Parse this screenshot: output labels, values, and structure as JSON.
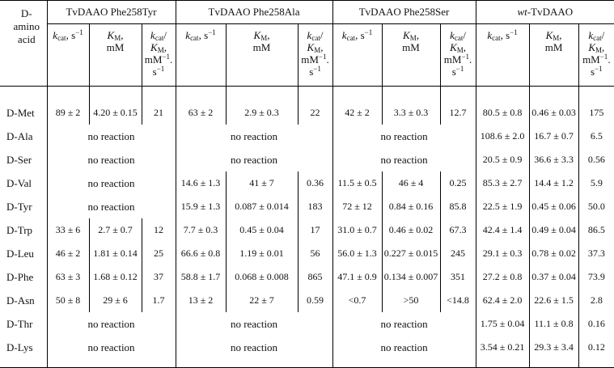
{
  "first_col_header": [
    "D-",
    "amino",
    "acid"
  ],
  "groups": [
    {
      "prefix": "",
      "name": "TvDAAO Phe258Tyr"
    },
    {
      "prefix": "",
      "name": "TvDAAO Phe258Ala"
    },
    {
      "prefix": "",
      "name": "TvDAAO Phe258Ser"
    },
    {
      "prefix": "wt",
      "name": "-TvDAAO"
    }
  ],
  "headers": {
    "kcat": {
      "sym": "k",
      "sub": "cat",
      "unit": ", s",
      "exp": "−1"
    },
    "km": {
      "sym": "K",
      "sub": "M",
      "unit": ",",
      "line2": "mM"
    },
    "eff": {
      "sym": "k",
      "sub": "cat",
      "slash": "/",
      "sym2": "K",
      "sub2": "M",
      "comma": ",",
      "unit": "mM",
      "exp": "−1",
      "dot": ".",
      "unit2": "s",
      "exp2": "−1"
    }
  },
  "rows": [
    {
      "aa": "D-Met",
      "groups": [
        [
          "89 ± 2",
          "4.20 ± 0.15",
          "21"
        ],
        [
          "63 ± 2",
          "2.9 ± 0.3",
          "22"
        ],
        [
          "42 ± 2",
          "3.3 ± 0.3",
          "12.7"
        ],
        [
          "80.5 ± 0.8",
          "0.46 ± 0.03",
          "175"
        ]
      ]
    },
    {
      "aa": "D-Ala",
      "groups": [
        "no reaction",
        "no reaction",
        "no reaction",
        [
          "108.6 ± 2.0",
          "16.7 ± 0.7",
          "6.5"
        ]
      ]
    },
    {
      "aa": "D-Ser",
      "groups": [
        "no reaction",
        "no reaction",
        "no reaction",
        [
          "20.5 ± 0.9",
          "36.6 ± 3.3",
          "0.56"
        ]
      ]
    },
    {
      "aa": "D-Val",
      "groups": [
        "no reaction",
        [
          "14.6 ± 1.3",
          "41 ± 7",
          "0.36"
        ],
        [
          "11.5 ± 0.5",
          "46 ± 4",
          "0.25"
        ],
        [
          "85.3 ± 2.7",
          "14.4 ± 1.2",
          "5.9"
        ]
      ]
    },
    {
      "aa": "D-Tyr",
      "groups": [
        "no reaction",
        [
          "15.9 ± 1.3",
          "0.087 ± 0.014",
          "183"
        ],
        [
          "72 ± 12",
          "0.84 ± 0.16",
          "85.8"
        ],
        [
          "22.5 ± 1.9",
          "0.45 ± 0.06",
          "50.0"
        ]
      ]
    },
    {
      "aa": "D-Trp",
      "groups": [
        [
          "33 ± 6",
          "2.7 ± 0.7",
          "12"
        ],
        [
          "7.7 ± 0.3",
          "0.45 ± 0.04",
          "17"
        ],
        [
          "31.0 ± 0.7",
          "0.46 ± 0.02",
          "67.3"
        ],
        [
          "42.4 ± 1.4",
          "0.49 ± 0.04",
          "86.5"
        ]
      ]
    },
    {
      "aa": "D-Leu",
      "groups": [
        [
          "46 ± 2",
          "1.81 ± 0.14",
          "25"
        ],
        [
          "66.6 ± 0.8",
          "1.19 ± 0.01",
          "56"
        ],
        [
          "56.0 ± 1.3",
          "0.227 ± 0.015",
          "245"
        ],
        [
          "29.1 ± 0.3",
          "0.78 ± 0.02",
          "37.3"
        ]
      ]
    },
    {
      "aa": "D-Phe",
      "groups": [
        [
          "63 ± 3",
          "1.68 ± 0.12",
          "37"
        ],
        [
          "58.8 ± 1.7",
          "0.068 ± 0.008",
          "865"
        ],
        [
          "47.1 ± 0.9",
          "0.134 ± 0.007",
          "351"
        ],
        [
          "27.2 ± 0.8",
          "0.37 ± 0.04",
          "73.9"
        ]
      ]
    },
    {
      "aa": "D-Asn",
      "groups": [
        [
          "50 ± 8",
          "29 ± 6",
          "1.7"
        ],
        [
          "13 ± 2",
          "22 ± 7",
          "0.59"
        ],
        [
          "<0.7",
          ">50",
          "<14.8"
        ],
        [
          "62.4 ± 2.0",
          "22.6 ± 1.5",
          "2.8"
        ]
      ]
    },
    {
      "aa": "D-Thr",
      "groups": [
        "no reaction",
        "no reaction",
        "no reaction",
        [
          "1.75 ± 0.04",
          "11.1 ± 0.8",
          "0.16"
        ]
      ]
    },
    {
      "aa": "D-Lys",
      "groups": [
        "no reaction",
        "no reaction",
        "no reaction",
        [
          "3.54 ± 0.21",
          "29.3 ± 3.4",
          "0.12"
        ]
      ]
    }
  ]
}
